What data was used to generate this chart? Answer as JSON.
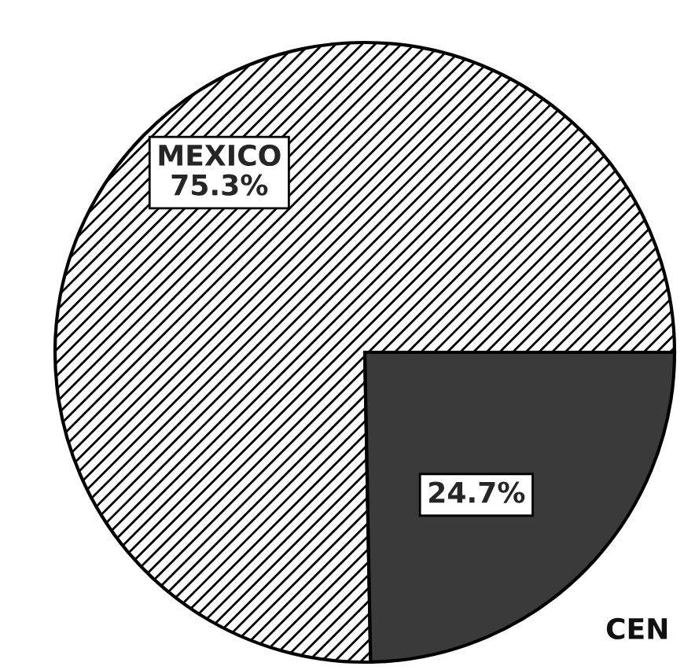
{
  "chart_data": {
    "type": "pie",
    "categories": [
      "MEXICO",
      "CEN"
    ],
    "values": [
      75.3,
      24.7
    ],
    "value_labels": [
      "75.3%",
      "24.7%"
    ],
    "colors": [
      "#ffffff",
      "#3a3a3a"
    ]
  }
}
